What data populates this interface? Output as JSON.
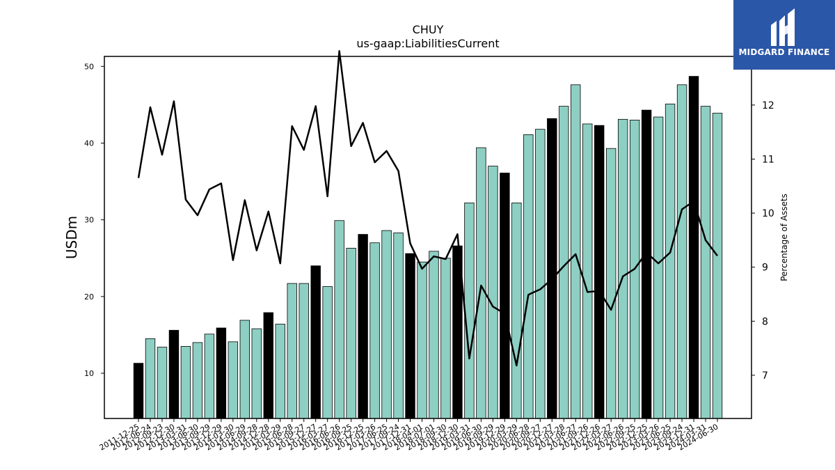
{
  "brand": {
    "name": "MIDGARD FINANCE",
    "color": "#2b57a8",
    "icon": "midgard-logo-icon"
  },
  "chart_data": {
    "type": "bar",
    "title": "CHUY",
    "subtitle": "us-gaap:LiabilitiesCurrent",
    "ylabel": "USDm",
    "y2label": "Percentage of Assets",
    "ylim": [
      4.1,
      51.3
    ],
    "y2lim": [
      6.2,
      12.9
    ],
    "yticks": [
      10,
      20,
      30,
      40,
      50
    ],
    "y2ticks": [
      7,
      8,
      9,
      10,
      11,
      12
    ],
    "colors": {
      "bar": "#8ecfc3",
      "bar_highlight": "#000000",
      "line": "#000000"
    },
    "categories": [
      "2011-12-25",
      "2012-06-24",
      "2012-09-23",
      "2012-12-30",
      "2013-03-31",
      "2013-06-30",
      "2013-09-29",
      "2013-12-29",
      "2014-03-30",
      "2014-06-29",
      "2014-09-28",
      "2014-12-28",
      "2015-03-29",
      "2015-06-28",
      "2015-09-27",
      "2015-12-27",
      "2016-03-27",
      "2016-06-26",
      "2016-09-25",
      "2016-12-25",
      "2017-03-26",
      "2017-06-25",
      "2017-09-24",
      "2017-12-31",
      "2018-04-01",
      "2018-07-01",
      "2018-09-30",
      "2018-12-30",
      "2019-03-31",
      "2019-06-30",
      "2019-09-29",
      "2019-12-29",
      "2020-03-29",
      "2020-06-28",
      "2020-09-27",
      "2020-12-27",
      "2021-03-28",
      "2021-06-27",
      "2021-09-26",
      "2021-12-26",
      "2022-03-27",
      "2022-06-26",
      "2022-09-25",
      "2022-12-25",
      "2023-03-26",
      "2023-06-25",
      "2023-09-24",
      "2023-12-31",
      "2024-03-31",
      "2024-06-30"
    ],
    "series": [
      {
        "values": [
          11.3,
          14.5,
          13.4,
          15.6,
          13.5,
          14.0,
          15.1,
          15.9,
          14.1,
          16.9,
          15.8,
          17.9,
          16.4,
          21.7,
          21.7,
          24.0,
          21.3,
          29.9,
          26.3,
          28.1,
          27.0,
          28.6,
          28.3,
          25.6,
          24.5,
          25.9,
          25.0,
          26.6,
          32.2,
          39.4,
          37.0,
          36.1,
          32.2,
          41.1,
          41.8,
          43.2,
          44.8,
          47.6,
          42.5,
          42.3,
          39.3,
          43.1,
          43.0,
          44.3,
          43.4,
          45.1,
          47.6,
          48.7,
          44.8,
          43.9
        ],
        "highlight": [
          true,
          false,
          false,
          true,
          false,
          false,
          false,
          true,
          false,
          false,
          false,
          true,
          false,
          false,
          false,
          true,
          false,
          false,
          false,
          true,
          false,
          false,
          false,
          true,
          false,
          false,
          false,
          true,
          false,
          false,
          false,
          true,
          false,
          false,
          false,
          true,
          false,
          false,
          false,
          true,
          false,
          false,
          false,
          true,
          false,
          false,
          false,
          true,
          false,
          false
        ]
      },
      {
        "axis": "right",
        "type": "line",
        "values": [
          10.65,
          11.96,
          11.08,
          12.07,
          10.25,
          9.96,
          10.44,
          10.55,
          9.13,
          10.24,
          9.31,
          10.03,
          9.07,
          11.61,
          11.17,
          11.98,
          10.31,
          13.0,
          11.24,
          11.67,
          10.94,
          11.15,
          10.78,
          9.44,
          8.97,
          9.2,
          9.15,
          9.61,
          7.31,
          8.66,
          8.27,
          8.14,
          7.18,
          8.49,
          8.59,
          8.78,
          9.02,
          9.24,
          8.54,
          8.56,
          8.21,
          8.83,
          8.97,
          9.27,
          9.07,
          9.27,
          10.07,
          10.22,
          9.5,
          9.21
        ]
      }
    ],
    "grid": false,
    "legend": "none"
  }
}
